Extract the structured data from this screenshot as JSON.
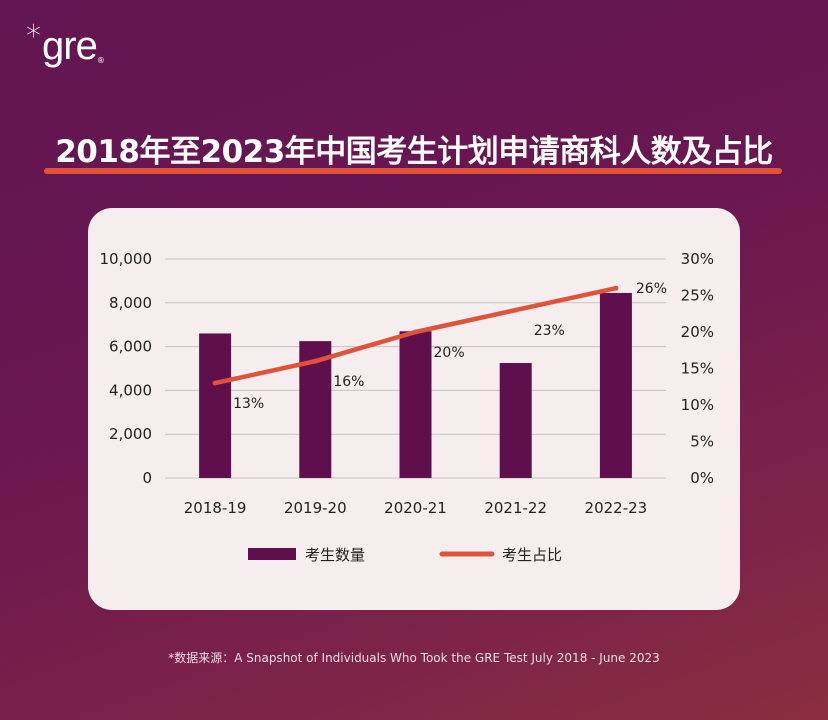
{
  "brand": {
    "asterisk": "*",
    "logo_text": "gre",
    "registered": "®"
  },
  "title": "2018年至2023年中国考生计划申请商科人数及占比",
  "footer": "*数据来源：A Snapshot of Individuals Who Took the GRE Test July 2018 - June 2023",
  "colors": {
    "bar": "#5e0f4c",
    "line": "#e0523a",
    "background": "#6a1750",
    "card": "#f6eeee"
  },
  "chart_data": {
    "type": "bar",
    "categories": [
      "2018-19",
      "2019-20",
      "2020-21",
      "2021-22",
      "2022-23"
    ],
    "series": [
      {
        "name": "考生数量",
        "type": "bar",
        "axis": "left",
        "values": [
          6600,
          6250,
          6700,
          5250,
          8450
        ]
      },
      {
        "name": "考生占比",
        "type": "line",
        "axis": "right",
        "values": [
          13,
          16,
          20,
          23,
          26
        ],
        "labels": [
          "13%",
          "16%",
          "20%",
          "23%",
          "26%"
        ]
      }
    ],
    "y_left": {
      "ylim": [
        0,
        10000
      ],
      "ticks": [
        "0",
        "2,000",
        "4,000",
        "6,000",
        "8,000",
        "10,000"
      ]
    },
    "y_right": {
      "ylim": [
        0,
        30
      ],
      "ticks": [
        "0%",
        "5%",
        "10%",
        "15%",
        "20%",
        "25%",
        "30%"
      ]
    },
    "grid": true,
    "legend_position": "bottom"
  }
}
